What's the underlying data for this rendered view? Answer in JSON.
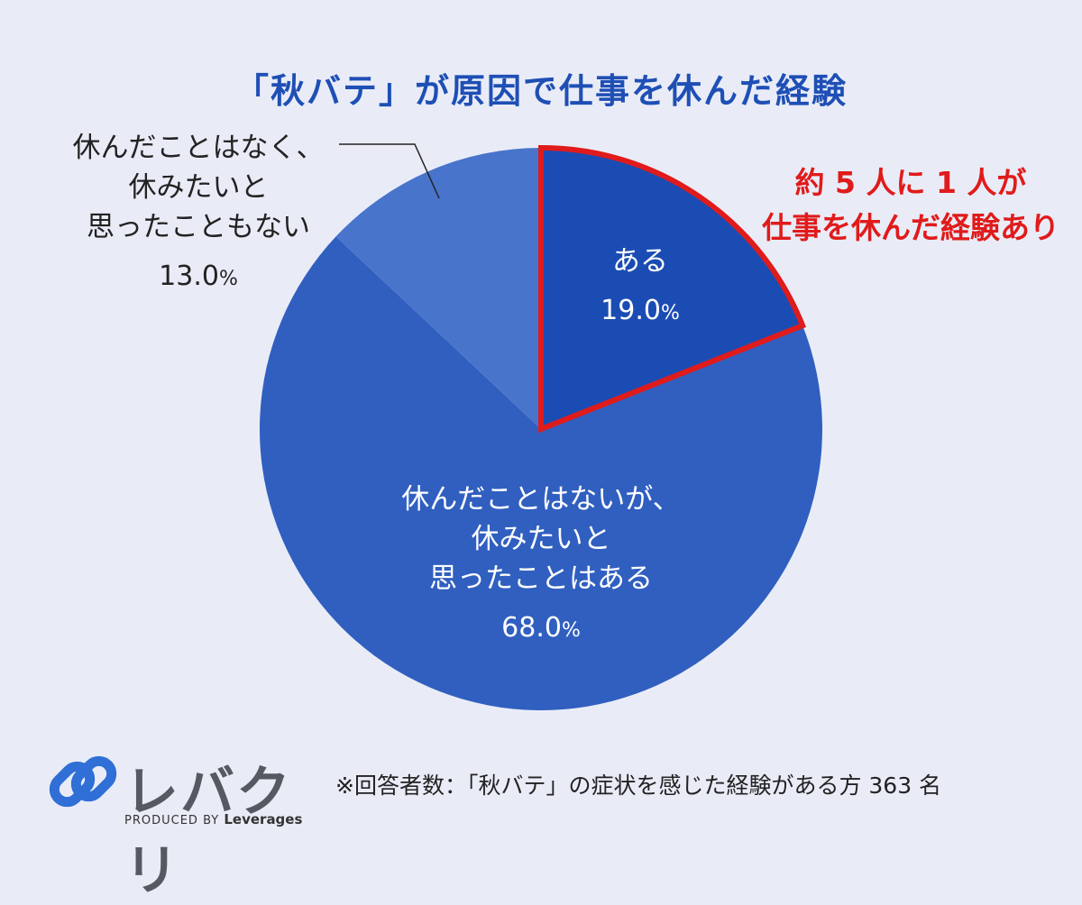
{
  "chart_data": {
    "type": "pie",
    "title": "「秋バテ」が原因で仕事を休んだ経験",
    "slices": [
      {
        "label": "ある",
        "value": 19.0,
        "value_text": "19.0",
        "color": "#1b4cb4",
        "highlight": true
      },
      {
        "label": "休んだことはないが、\n休みたいと\n思ったことはある",
        "value": 68.0,
        "value_text": "68.0",
        "color": "#305fc0",
        "highlight": false
      },
      {
        "label": "休んだことはなく、\n休みたいと\n思ったこともない",
        "value": 13.0,
        "value_text": "13.0",
        "color": "#4874cb",
        "highlight": false
      }
    ],
    "unit": "%",
    "start_angle": "12 o'clock, clockwise",
    "highlight_color": "#e01b1b",
    "annotation": "約 5 人に 1 人が\n仕事を休んだ経験あり"
  },
  "brand": {
    "name": "レバクリ",
    "produced_by_prefix": "PRODUCED BY",
    "produced_by_company": "Leverages",
    "icon_color": "#2f6fd6"
  },
  "footnote": "※回答者数：「秋バテ」の症状を感じた経験がある方 363 名"
}
